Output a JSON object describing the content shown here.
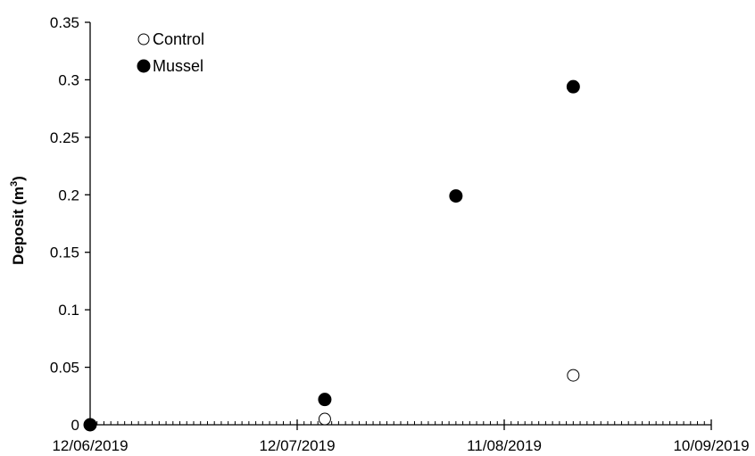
{
  "chart_data": {
    "type": "scatter",
    "xlabel": "",
    "ylabel": "Deposit (m",
    "ylabel_sup": "3",
    "ylabel_close": ")",
    "xlim": [
      "2019-06-12",
      "2019-09-10"
    ],
    "ylim": [
      0,
      0.35
    ],
    "x_ticks": [
      "12/06/2019",
      "12/07/2019",
      "11/08/2019",
      "10/09/2019"
    ],
    "x_tick_dates": [
      "2019-06-12",
      "2019-07-12",
      "2019-08-11",
      "2019-09-10"
    ],
    "y_ticks": [
      0,
      0.05,
      0.1,
      0.15,
      0.2,
      0.25,
      0.3,
      0.35
    ],
    "y_tick_labels": [
      "0",
      "0.05",
      "0.1",
      "0.15",
      "0.2",
      "0.25",
      "0.3",
      "0.35"
    ],
    "grid": false,
    "legend_position": "top-left",
    "series": [
      {
        "name": "Control",
        "marker": "open-circle",
        "color": "#000000",
        "points": [
          {
            "x": "2019-06-12",
            "y": 0
          },
          {
            "x": "2019-07-16",
            "y": 0.005
          },
          {
            "x": "2019-08-21",
            "y": 0.043
          }
        ]
      },
      {
        "name": "Mussel",
        "marker": "filled-circle",
        "color": "#000000",
        "points": [
          {
            "x": "2019-06-12",
            "y": 0
          },
          {
            "x": "2019-07-16",
            "y": 0.022
          },
          {
            "x": "2019-08-04",
            "y": 0.199
          },
          {
            "x": "2019-08-21",
            "y": 0.294
          }
        ]
      }
    ]
  }
}
